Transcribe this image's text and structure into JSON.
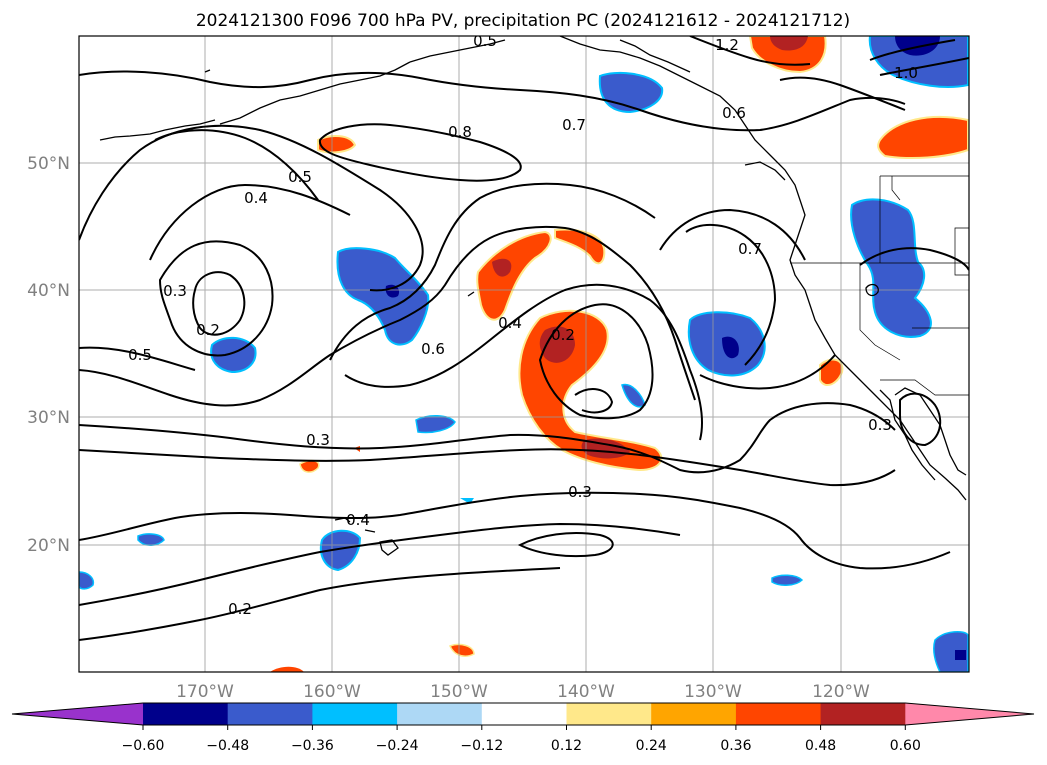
{
  "title": "2024121300 F096 700 hPa PV, precipitation PC (2024121612 - 2024121712)",
  "map": {
    "lat_labels": [
      "50°N",
      "40°N",
      "30°N",
      "20°N"
    ],
    "lon_labels": [
      "170°W",
      "160°W",
      "150°W",
      "140°W",
      "130°W",
      "120°W"
    ],
    "contour_labels": [
      "0.5",
      "1.2",
      "0.8",
      "0.7",
      "0.6",
      "1.0",
      "0.5",
      "0.4",
      "0.3",
      "0.2",
      "0.4",
      "0.6",
      "0.2",
      "0.7",
      "0.5",
      "0.3",
      "0.3",
      "0.4",
      "0.2",
      "0.3"
    ]
  },
  "colorbar": {
    "ticks": [
      "−0.60",
      "−0.48",
      "−0.36",
      "−0.24",
      "−0.12",
      "0.12",
      "0.24",
      "0.36",
      "0.48",
      "0.60"
    ],
    "colors": [
      "#9932cc",
      "#00008b",
      "#3a5bcc",
      "#00bfff",
      "#add8f5",
      "#ffffff",
      "#ffe88a",
      "#ffa500",
      "#ff4500",
      "#b22222",
      "#ff88aa"
    ]
  }
}
